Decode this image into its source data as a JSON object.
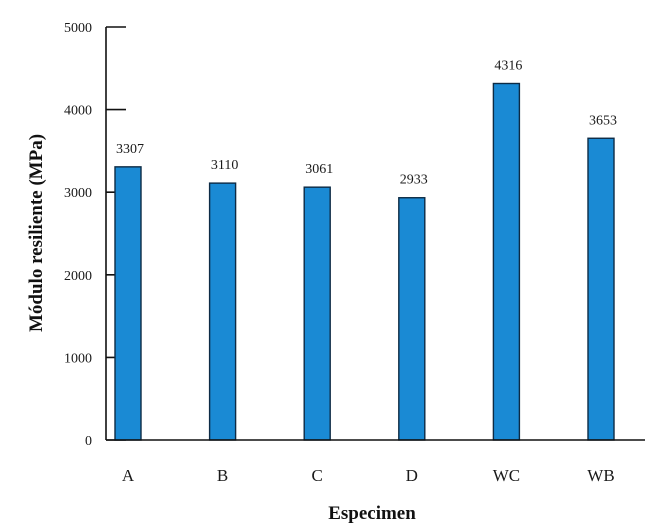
{
  "chart_data": {
    "type": "bar",
    "title": "",
    "xlabel": "Especimen",
    "ylabel": "Módulo resiliente (MPa)",
    "categories": [
      "A",
      "B",
      "C",
      "D",
      "WC",
      "WB"
    ],
    "values": [
      3307,
      3110,
      3061,
      2933,
      4316,
      3653
    ],
    "data_labels": [
      "3307",
      "3110",
      "3061",
      "2933",
      "4316",
      "3653"
    ],
    "ylim": [
      0,
      5000
    ],
    "yticks": [
      0,
      1000,
      2000,
      3000,
      4000,
      5000
    ],
    "ytick_labels": [
      "0",
      "1000",
      "2000",
      "3000",
      "4000",
      "5000"
    ],
    "grid": false,
    "bar_color": "#1a8ad4",
    "bar_edge_color": "#0d2b45"
  }
}
